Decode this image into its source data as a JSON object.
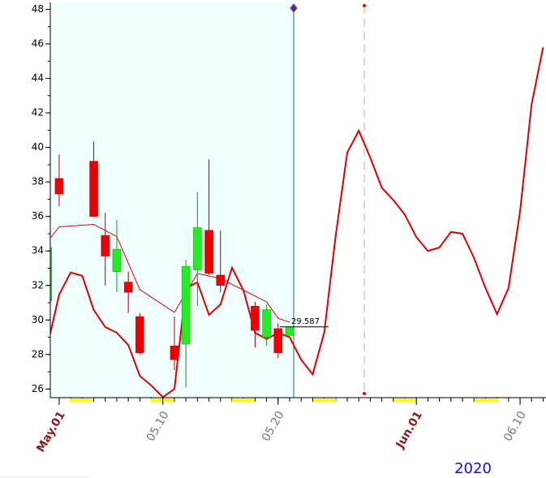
{
  "chart_data": {
    "type": "candlestick",
    "year": "2020",
    "xlim": [
      0.23,
      43.25
    ],
    "ylim": [
      25.5,
      48.4
    ],
    "xticks": [
      {
        "value": 1,
        "label": "May.01"
      },
      {
        "value": 10,
        "label": "05.10"
      },
      {
        "value": 20,
        "label": "05.20"
      },
      {
        "value": 32,
        "label": "Jun.01"
      },
      {
        "value": 41,
        "label": "06.10"
      }
    ],
    "yticks": [
      26,
      28,
      30,
      32,
      34,
      36,
      38,
      40,
      42,
      44,
      46,
      48
    ],
    "x": [
      0,
      1,
      4,
      5,
      6,
      7,
      8,
      11,
      12,
      13,
      14,
      15,
      18,
      19,
      20,
      21
    ],
    "open": [
      31.1,
      38.2,
      39.2,
      34.9,
      32.8,
      32.2,
      30.2,
      28.5,
      28.6,
      32.9,
      35.2,
      32.6,
      30.8,
      29.0,
      29.5,
      29.1
    ],
    "high": [
      34.5,
      39.6,
      40.35,
      36.2,
      35.8,
      32.8,
      30.4,
      30.2,
      33.5,
      37.4,
      39.3,
      35.2,
      31.05,
      30.9,
      29.8,
      29.6
    ],
    "low": [
      30.9,
      36.6,
      36.0,
      32.0,
      31.6,
      30.4,
      28.0,
      27.1,
      26.1,
      30.8,
      32.6,
      31.6,
      28.4,
      28.5,
      27.8,
      29.1
    ],
    "close": [
      34.2,
      37.3,
      36.0,
      33.7,
      34.1,
      31.6,
      28.1,
      27.7,
      33.1,
      35.35,
      32.7,
      32.0,
      29.4,
      30.6,
      28.1,
      29.6
    ],
    "up_color": "#22ee22",
    "down_color": "#ee0000",
    "last_label": "29.587",
    "lines": [
      {
        "color": "#dd0000",
        "x": [
          0,
          1,
          4,
          6,
          8,
          11,
          13,
          15,
          19,
          20,
          21
        ],
        "values": [
          34.55,
          35.4,
          35.54,
          34.83,
          31.76,
          30.44,
          32.7,
          32.4,
          31.05,
          30.1,
          29.87
        ]
      },
      {
        "color": "#dd0000",
        "x": [
          0,
          1,
          2,
          3,
          4,
          5,
          6,
          7,
          8,
          9,
          10,
          11,
          12,
          13,
          14,
          15,
          16,
          17,
          18,
          19,
          20,
          21,
          22,
          23,
          24,
          25,
          26,
          27,
          28,
          29,
          30,
          31,
          32,
          33,
          34,
          35,
          36,
          37,
          38,
          39,
          40,
          41,
          42,
          43
        ],
        "values": [
          28.55,
          31.48,
          32.75,
          32.56,
          30.58,
          29.59,
          29.26,
          28.55,
          26.76,
          26.2,
          25.53,
          26.0,
          31.85,
          32.18,
          30.3,
          30.9,
          33.03,
          31.7,
          29.26,
          28.9,
          29.26,
          29.0,
          27.7,
          26.85,
          29.26,
          34.9,
          39.7,
          40.97,
          39.4,
          37.66,
          36.95,
          36.1,
          34.8,
          34.0,
          34.2,
          35.1,
          35.0,
          33.6,
          31.85,
          30.34,
          31.85,
          36.3,
          42.5,
          45.8
        ]
      }
    ]
  }
}
